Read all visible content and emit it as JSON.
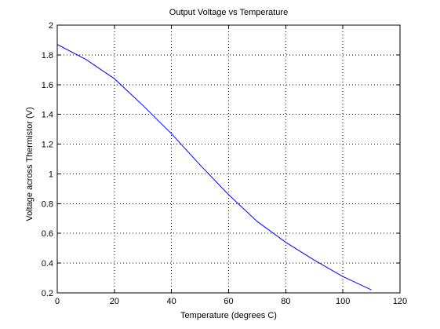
{
  "chart_data": {
    "type": "line",
    "title": "Output Voltage vs Temperature",
    "xlabel": "Temperature (degrees C)",
    "ylabel": "Voltage across Thermistor (V)",
    "xlim": [
      0,
      120
    ],
    "ylim": [
      0.2,
      2
    ],
    "xticks": [
      0,
      20,
      40,
      60,
      80,
      100,
      120
    ],
    "xtick_labels": [
      "0",
      "20",
      "40",
      "60",
      "80",
      "100",
      "120"
    ],
    "yticks": [
      0.2,
      0.4,
      0.6,
      0.8,
      1,
      1.2,
      1.4,
      1.6,
      1.8,
      2
    ],
    "ytick_labels": [
      "0.2",
      "0.4",
      "0.6",
      "0.8",
      "1",
      "1.2",
      "1.4",
      "1.6",
      "1.8",
      "2"
    ],
    "grid": true,
    "series": [
      {
        "color": "#0000ff",
        "x": [
          0,
          10,
          20,
          30,
          40,
          50,
          60,
          70,
          80,
          90,
          100,
          110
        ],
        "y": [
          1.87,
          1.77,
          1.64,
          1.46,
          1.27,
          1.06,
          0.86,
          0.68,
          0.54,
          0.42,
          0.31,
          0.22
        ]
      }
    ]
  }
}
